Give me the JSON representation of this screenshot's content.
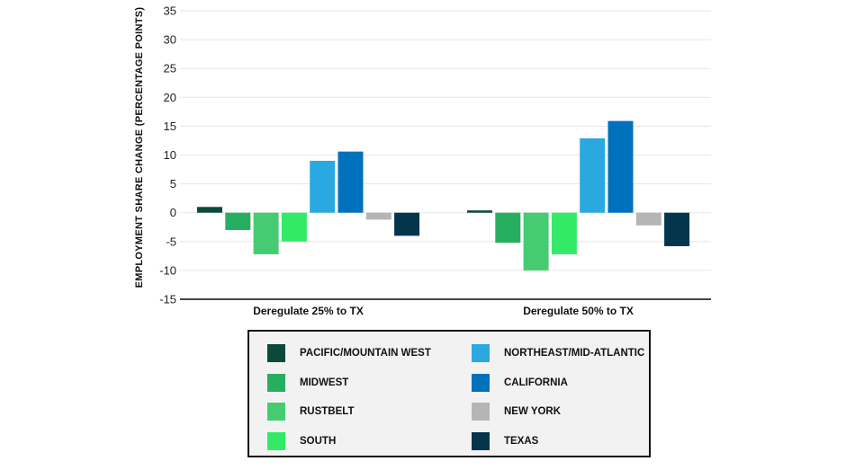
{
  "chart_data": {
    "type": "bar",
    "title": "",
    "xlabel": "",
    "ylabel": "EMPLOYMENT SHARE CHANGE (PERCENTAGE POINTS)",
    "ylim": [
      -15,
      35
    ],
    "yticks": [
      35,
      30,
      25,
      20,
      15,
      10,
      5,
      0,
      -5,
      -10,
      -15
    ],
    "ytick_labels": [
      "35",
      "30",
      "25",
      "20",
      "15",
      "10",
      "5",
      "0",
      "-5",
      "-10",
      "-15"
    ],
    "grid": true,
    "legend_position": "bottom-center",
    "categories": [
      "Deregulate 25% to TX",
      "Deregulate 50% to TX"
    ],
    "series": [
      {
        "name": "PACIFIC/MOUNTAIN WEST",
        "color": "#0b4a3a",
        "values": [
          1.0,
          0.4
        ]
      },
      {
        "name": "MIDWEST",
        "color": "#27ae60",
        "values": [
          -3.0,
          -5.2
        ]
      },
      {
        "name": "RUSTBELT",
        "color": "#45cc72",
        "values": [
          -7.2,
          -10.0
        ]
      },
      {
        "name": "SOUTH",
        "color": "#33ea66",
        "values": [
          -5.0,
          -7.2
        ]
      },
      {
        "name": "NORTHEAST/MID-ATLANTIC",
        "color": "#2aa9e0",
        "values": [
          9.0,
          12.9
        ]
      },
      {
        "name": "CALIFORNIA",
        "color": "#0071bd",
        "values": [
          10.6,
          15.9
        ]
      },
      {
        "name": "NEW YORK",
        "color": "#b5b5b5",
        "values": [
          -1.2,
          -2.2
        ]
      },
      {
        "name": "TEXAS",
        "color": "#05344d",
        "values": [
          -4.0,
          -5.8
        ]
      }
    ]
  }
}
